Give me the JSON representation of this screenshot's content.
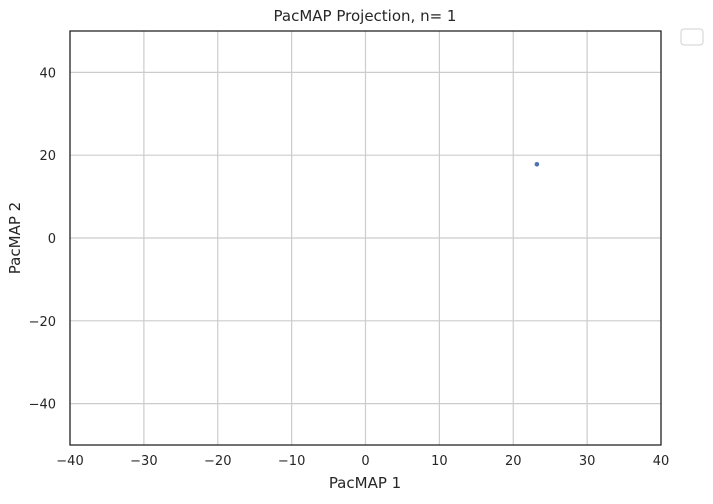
{
  "chart_data": {
    "type": "scatter",
    "title": "PacMAP Projection, n= 1",
    "xlabel": "PacMAP 1",
    "ylabel": "PacMAP 2",
    "xlim": [
      -40,
      40
    ],
    "ylim": [
      -50,
      50
    ],
    "xticks": [
      -40,
      -30,
      -20,
      -10,
      0,
      10,
      20,
      30,
      40
    ],
    "yticks": [
      -40,
      -20,
      0,
      20,
      40
    ],
    "xtick_labels": [
      "−40",
      "−30",
      "−20",
      "−10",
      "0",
      "10",
      "20",
      "30",
      "40"
    ],
    "ytick_labels": [
      "−40",
      "−20",
      "0",
      "20",
      "40"
    ],
    "grid": true,
    "legend": "empty box, outside top-right",
    "point_color": "#4c72b0",
    "series": [
      {
        "x": [
          23.2
        ],
        "y": [
          17.8
        ]
      }
    ]
  }
}
